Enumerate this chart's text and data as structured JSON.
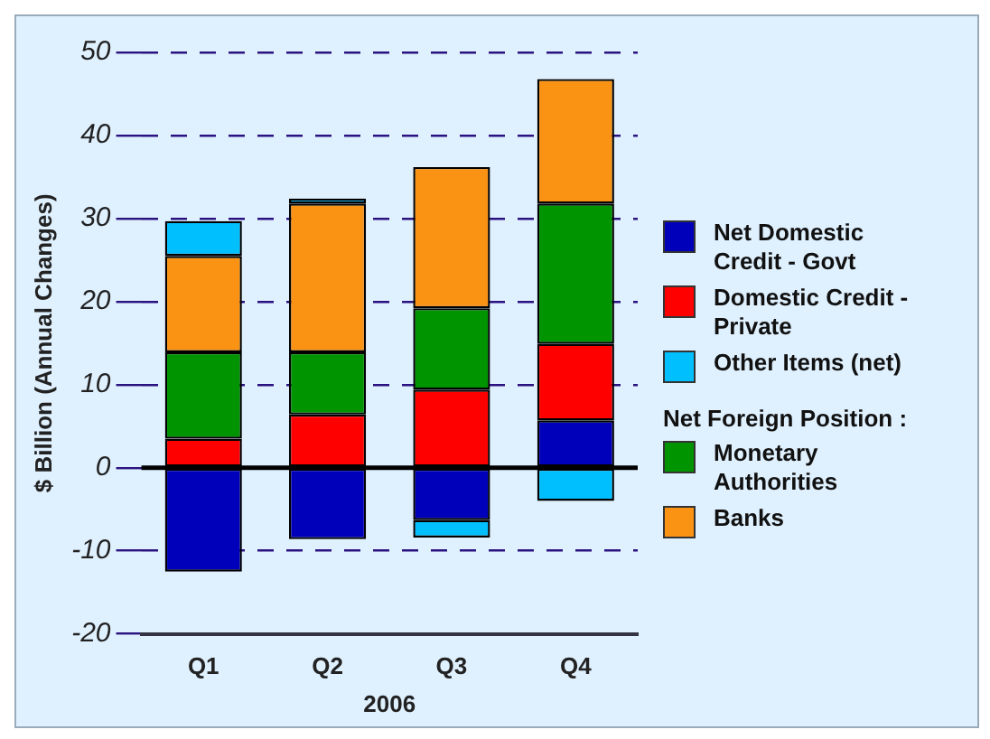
{
  "chart_data": {
    "type": "bar",
    "stacked": true,
    "ylabel": "$ Billion (Annual Changes)",
    "xlabel": "2006",
    "legend_title": "Net Foreign Position :",
    "categories": [
      "Q1",
      "Q2",
      "Q3",
      "Q4"
    ],
    "series": [
      {
        "name": "Net Domestic Credit - Govt",
        "color": "#0000bb",
        "values": [
          -12.5,
          -8.6,
          -6.3,
          5.7
        ]
      },
      {
        "name": "Domestic Credit - Private",
        "color": "#ff0000",
        "values": [
          3.5,
          6.4,
          9.4,
          9.2
        ]
      },
      {
        "name": "Other Items (net)",
        "color": "#00bfff",
        "values": [
          4.2,
          0.6,
          -2.1,
          -4.0
        ]
      },
      {
        "name": "Monetary Authorities",
        "color": "#009400",
        "values": [
          10.4,
          7.5,
          9.8,
          16.9
        ]
      },
      {
        "name": "Banks",
        "color": "#fa9214",
        "values": [
          11.6,
          17.9,
          17.0,
          15.0
        ]
      }
    ],
    "ref_lines": [
      {
        "axis": "y",
        "value": 0,
        "color": "#000000",
        "line_style": "solid"
      }
    ],
    "ylim": [
      -20,
      50
    ],
    "yticks": [
      -20,
      -10,
      0,
      10,
      20,
      30,
      40,
      50
    ],
    "grid": "y",
    "legend": "right"
  }
}
